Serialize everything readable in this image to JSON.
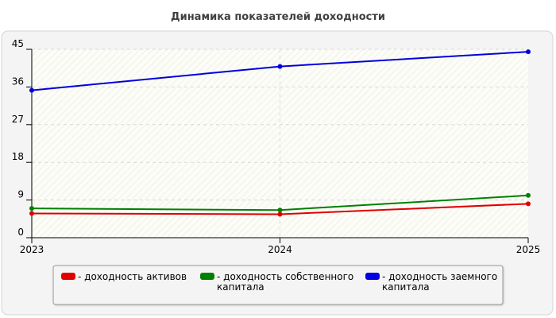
{
  "chart_data": {
    "type": "line",
    "title": "Динамика показателей доходности",
    "xlabel": "",
    "ylabel": "",
    "x": [
      "2023",
      "2024",
      "2025"
    ],
    "ylim": [
      0,
      45
    ],
    "yticks": [
      0,
      9,
      18,
      27,
      36,
      45
    ],
    "grid": true,
    "legend_position": "bottom",
    "series": [
      {
        "name": "- доходность активов",
        "legend_lines": [
          "- доходность активов"
        ],
        "color": "#e00000",
        "values": [
          5.8,
          5.6,
          8.1
        ]
      },
      {
        "name": "- доходность собственного капитала",
        "legend_lines": [
          "- доходность собственного",
          "капитала"
        ],
        "color": "#008000",
        "values": [
          7.0,
          6.6,
          10.1
        ]
      },
      {
        "name": "- доходность заемного капитала",
        "legend_lines": [
          "- доходность заемного",
          "капитала"
        ],
        "color": "#0000e0",
        "values": [
          35.2,
          40.9,
          44.4
        ]
      }
    ]
  }
}
